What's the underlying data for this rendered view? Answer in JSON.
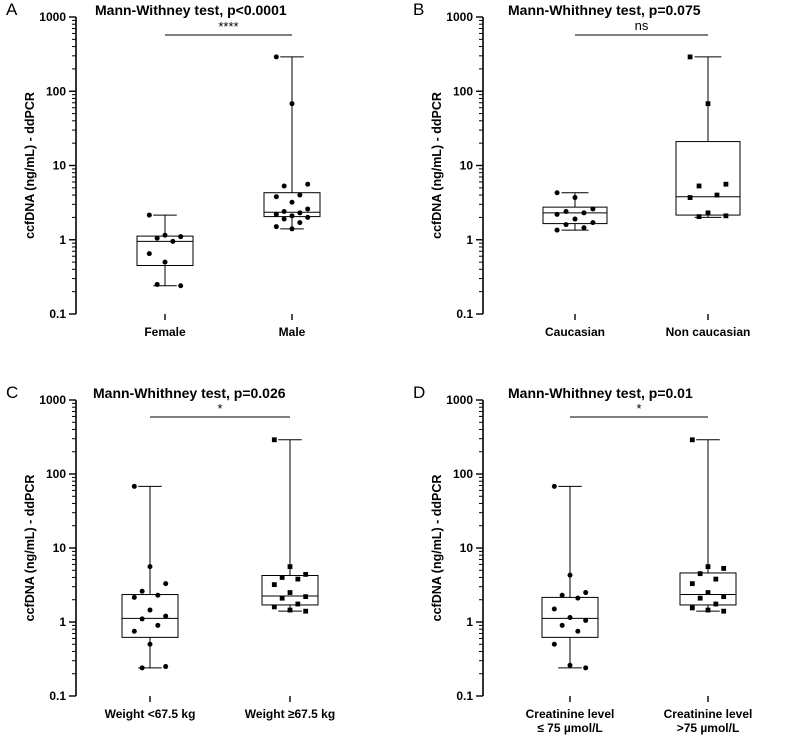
{
  "chart_data": [
    {
      "type": "box",
      "panel": "A",
      "title": "Mann-Withney test, p<0.0001",
      "ylabel": "ccfDNA (ng/mL) - ddPCR",
      "yscale": "log",
      "ylim": [
        0.1,
        1000
      ],
      "yticks": [
        "0.1",
        "1",
        "10",
        "100",
        "1000"
      ],
      "categories": [
        "Female",
        "Male"
      ],
      "boxes": [
        {
          "min": 0.24,
          "q1": 0.45,
          "median": 0.95,
          "q3": 1.12,
          "max": 2.15
        },
        {
          "min": 1.4,
          "q1": 2.05,
          "median": 2.35,
          "q3": 4.3,
          "max": 290
        }
      ],
      "points": [
        [
          2.15,
          1.15,
          1.1,
          1.05,
          0.95,
          0.65,
          0.5,
          0.24,
          0.25
        ],
        [
          290,
          68,
          5.6,
          5.3,
          4.0,
          3.8,
          3.2,
          2.6,
          2.4,
          2.3,
          2.2,
          2.1,
          2.0,
          1.9,
          1.7,
          1.5,
          1.4
        ]
      ],
      "point_marker": [
        "circle",
        "circle"
      ],
      "significance": "****"
    },
    {
      "type": "box",
      "panel": "B",
      "title": "Mann-Whithney test, p=0.075",
      "ylabel": "ccfDNA (ng/mL) - ddPCR",
      "yscale": "log",
      "ylim": [
        0.1,
        1000
      ],
      "yticks": [
        "0.1",
        "1",
        "10",
        "100",
        "1000"
      ],
      "categories": [
        "Caucasian",
        "Non caucasian"
      ],
      "boxes": [
        {
          "min": 1.35,
          "q1": 1.65,
          "median": 2.3,
          "q3": 2.75,
          "max": 4.3
        },
        {
          "min": 2.0,
          "q1": 2.15,
          "median": 3.8,
          "q3": 21,
          "max": 290
        }
      ],
      "points": [
        [
          4.3,
          3.7,
          2.6,
          2.4,
          2.3,
          2.2,
          1.9,
          1.7,
          1.6,
          1.45,
          1.35
        ],
        [
          290,
          68,
          5.6,
          5.3,
          4.0,
          3.7,
          2.3,
          2.1,
          2.05
        ]
      ],
      "point_marker": [
        "circle",
        "square"
      ],
      "significance": "ns"
    },
    {
      "type": "box",
      "panel": "C",
      "title": "Mann-Whithney test, p=0.026",
      "ylabel": "ccfDNA (ng/mL) - ddPCR",
      "yscale": "log",
      "ylim": [
        0.1,
        1000
      ],
      "yticks": [
        "0.1",
        "1",
        "10",
        "100",
        "1000"
      ],
      "categories": [
        "Weight <67.5 kg",
        "Weight  ≥67.5 kg"
      ],
      "boxes": [
        {
          "min": 0.24,
          "q1": 0.62,
          "median": 1.12,
          "q3": 2.35,
          "max": 68
        },
        {
          "min": 1.4,
          "q1": 1.7,
          "median": 2.25,
          "q3": 4.25,
          "max": 290
        }
      ],
      "points": [
        [
          68,
          5.6,
          3.3,
          2.6,
          2.3,
          2.15,
          1.45,
          1.2,
          1.1,
          0.9,
          0.75,
          0.5,
          0.25,
          0.24
        ],
        [
          290,
          5.6,
          4.4,
          4.0,
          3.8,
          3.2,
          2.5,
          2.2,
          2.1,
          1.75,
          1.6,
          1.45,
          1.4
        ]
      ],
      "point_marker": [
        "circle",
        "square"
      ],
      "significance": "*"
    },
    {
      "type": "box",
      "panel": "D",
      "title": "Mann-Whithney test, p=0.01",
      "ylabel": "ccfDNA (ng/mL) - ddPCR",
      "yscale": "log",
      "ylim": [
        0.1,
        1000
      ],
      "yticks": [
        "0.1",
        "1",
        "10",
        "100",
        "1000"
      ],
      "categories": [
        "Creatinine level\n≤ 75 µmol/L",
        "Creatinine level\n>75 µmol/L"
      ],
      "boxes": [
        {
          "min": 0.24,
          "q1": 0.62,
          "median": 1.12,
          "q3": 2.15,
          "max": 68
        },
        {
          "min": 1.4,
          "q1": 1.7,
          "median": 2.35,
          "q3": 4.6,
          "max": 290
        }
      ],
      "points": [
        [
          68,
          4.3,
          2.5,
          2.3,
          2.1,
          1.5,
          1.15,
          1.05,
          0.9,
          0.75,
          0.5,
          0.26,
          0.24
        ],
        [
          290,
          5.6,
          5.3,
          4.5,
          3.8,
          3.3,
          2.5,
          2.2,
          2.1,
          1.75,
          1.55,
          1.45,
          1.4
        ]
      ],
      "point_marker": [
        "circle",
        "square"
      ],
      "significance": "*"
    }
  ]
}
